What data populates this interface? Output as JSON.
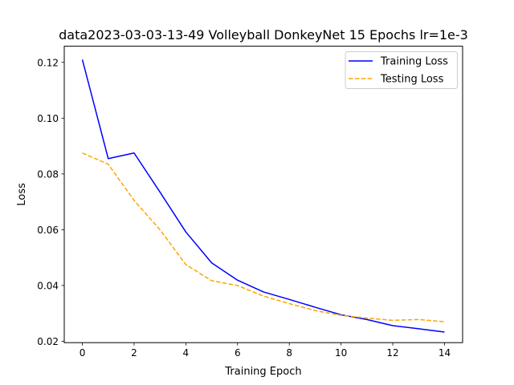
{
  "chart_data": {
    "type": "line",
    "title": "data2023-03-03-13-49 Volleyball DonkeyNet 15 Epochs lr=1e-3",
    "xlabel": "Training Epoch",
    "ylabel": "Loss",
    "x": [
      0,
      1,
      2,
      3,
      4,
      5,
      6,
      7,
      8,
      9,
      10,
      11,
      12,
      13,
      14
    ],
    "xlim": [
      -0.7,
      14.7
    ],
    "ylim": [
      0.0195,
      0.1258
    ],
    "xticks": [
      0,
      2,
      4,
      6,
      8,
      10,
      12,
      14
    ],
    "yticks": [
      0.02,
      0.04,
      0.06,
      0.08,
      0.1,
      0.12
    ],
    "xtick_labels": [
      "0",
      "2",
      "4",
      "6",
      "8",
      "10",
      "12",
      "14"
    ],
    "ytick_labels": [
      "0.02",
      "0.04",
      "0.06",
      "0.08",
      "0.10",
      "0.12"
    ],
    "grid": false,
    "legend_position": "top-right",
    "series": [
      {
        "name": "Training Loss",
        "color": "#0000ff",
        "style": "solid",
        "values": [
          0.121,
          0.0855,
          0.0875,
          0.0735,
          0.0592,
          0.0481,
          0.0419,
          0.0377,
          0.035,
          0.0322,
          0.0295,
          0.0278,
          0.0256,
          0.0245,
          0.0233
        ]
      },
      {
        "name": "Testing Loss",
        "color": "#ffa500",
        "style": "dashed",
        "values": [
          0.0875,
          0.0835,
          0.0705,
          0.06,
          0.0475,
          0.0417,
          0.04,
          0.0362,
          0.0335,
          0.031,
          0.0293,
          0.0283,
          0.0275,
          0.0278,
          0.027
        ]
      }
    ]
  }
}
